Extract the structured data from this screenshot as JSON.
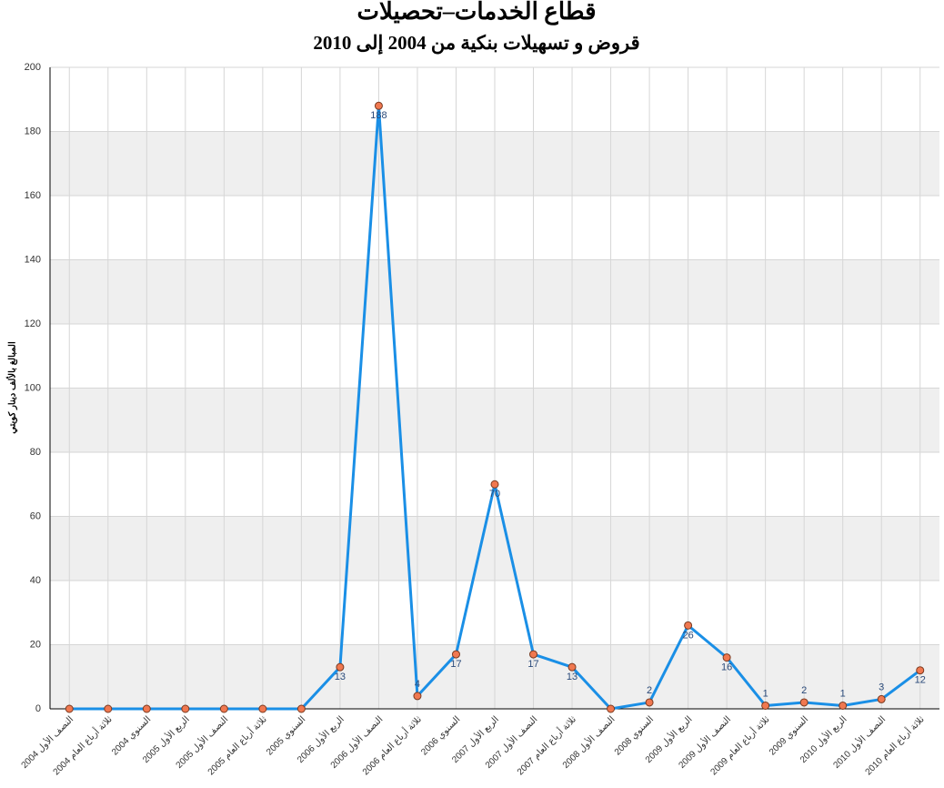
{
  "chart_data": {
    "type": "line",
    "title": "قطاع الخدمات–تحصيلات",
    "subtitle": "قروض و تسهيلات بنكية من 2004 إلى 2010",
    "y_label": "المبالغ بالألف دينار كويتي",
    "categories": [
      "النصف الأول 2004",
      "ثلاثة أرباع العام 2004",
      "السنوي 2004",
      "الربع الأول 2005",
      "النصف الأول 2005",
      "ثلاثة أرباع العام 2005",
      "السنوي 2005",
      "الربع الأول 2006",
      "النصف الأول 2006",
      "ثلاثة أرباع العام 2006",
      "السنوي 2006",
      "الربع الأول 2007",
      "النصف الأول 2007",
      "ثلاثة أرباع العام 2007",
      "النصف الأول 2008",
      "السنوي 2008",
      "الربع الأول 2009",
      "النصف الأول 2009",
      "ثلاثة أرباع العام 2009",
      "السنوي 2009",
      "الربع الأول 2010",
      "النصف الأول 2010",
      "ثلاثة أرباع العام 2010"
    ],
    "values": [
      0,
      0,
      0,
      0,
      0,
      0,
      0,
      13,
      188,
      4,
      17,
      70,
      17,
      13,
      0,
      2,
      26,
      16,
      1,
      2,
      1,
      3,
      12
    ],
    "color": "#1a8fe6",
    "marker_color": "#f07850",
    "ylim": [
      0,
      200
    ],
    "yticks": [
      0,
      20,
      40,
      60,
      80,
      100,
      120,
      140,
      160,
      180,
      200
    ],
    "grid": true
  }
}
